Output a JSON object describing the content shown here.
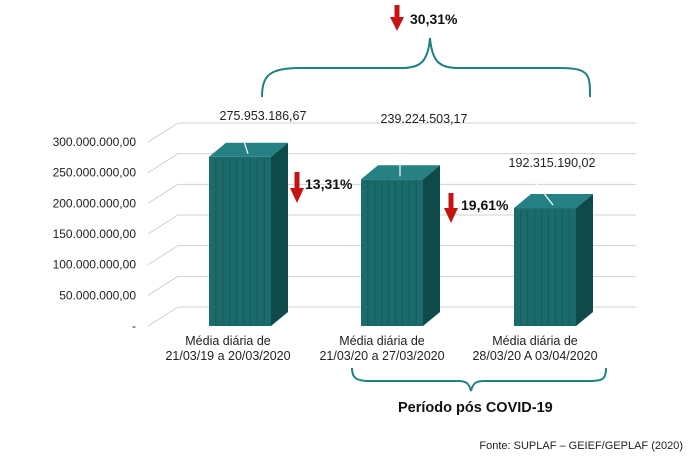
{
  "colors": {
    "bar_front": "#1b6b6c",
    "bar_side": "#0f4a4b",
    "bar_top": "#258183",
    "arrow": "#c41414",
    "bracket": "#1f7f83",
    "grid": "#d2d2d2"
  },
  "chart_data": {
    "type": "bar",
    "categories": [
      [
        "Média diária de",
        "21/03/19 a 20/03/2020"
      ],
      [
        "Média diária de",
        "21/03/20 a 27/03/2020"
      ],
      [
        "Média diária de",
        "28/03/20 A 03/04/2020"
      ]
    ],
    "values": [
      275953186.67,
      239224503.17,
      192315190.02
    ],
    "value_labels": [
      "275.953.186,67",
      "239.224.503,17",
      "192.315.190,02"
    ],
    "ylim": [
      0,
      300000000
    ],
    "y_ticks": [
      0,
      50000000,
      100000000,
      150000000,
      200000000,
      250000000,
      300000000
    ],
    "y_tick_labels": [
      "-",
      "50.000.000,00",
      "100.000.000,00",
      "150.000.000,00",
      "200.000.000,00",
      "250.000.000,00",
      "300.000.000,00"
    ],
    "changes": [
      {
        "label": "30,31%",
        "from": 0,
        "to": 2
      },
      {
        "label": "13,31%",
        "from": 0,
        "to": 1
      },
      {
        "label": "19,61%",
        "from": 1,
        "to": 2
      }
    ],
    "group_label": "Período pós COVID-19",
    "grid": true,
    "source": "Fonte: SUPLAF – GEIEF/GEPLAF (2020)"
  }
}
